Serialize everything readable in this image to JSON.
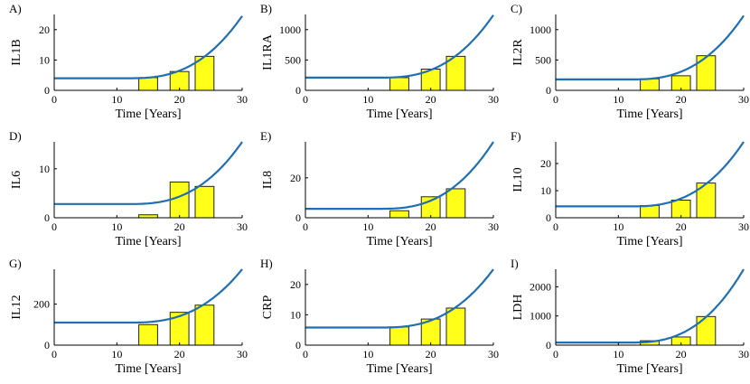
{
  "colors": {
    "curve": "#1f6fb2",
    "bar_fill": "#ffff1a",
    "bar_stroke": "#222222",
    "axis": "#000000"
  },
  "chart_data": [
    {
      "panel": "A)",
      "type": "bar+line",
      "ylabel": "IL1B",
      "xlabel": "Time [Years]",
      "xlim": [
        0,
        30
      ],
      "ylim": [
        0,
        25
      ],
      "xticks": [
        "0",
        "10",
        "20",
        "30"
      ],
      "yticks": [
        0,
        10,
        20
      ],
      "bars": [
        {
          "x": 15,
          "y": 4.2
        },
        {
          "x": 20,
          "y": 6.2
        },
        {
          "x": 24,
          "y": 11.2
        }
      ],
      "curve": {
        "baseline": 4.0,
        "end": 24.5
      }
    },
    {
      "panel": "B)",
      "type": "bar+line",
      "ylabel": "IL1RA",
      "xlabel": "Time [Years]",
      "xlim": [
        0,
        30
      ],
      "ylim": [
        0,
        1250
      ],
      "xticks": [
        "0",
        "10",
        "20",
        "30"
      ],
      "yticks": [
        0,
        500,
        1000
      ],
      "bars": [
        {
          "x": 15,
          "y": 210
        },
        {
          "x": 20,
          "y": 350
        },
        {
          "x": 24,
          "y": 560
        }
      ],
      "curve": {
        "baseline": 210,
        "end": 1240
      }
    },
    {
      "panel": "C)",
      "type": "bar+line",
      "ylabel": "IL2R",
      "xlabel": "Time [Years]",
      "xlim": [
        0,
        30
      ],
      "ylim": [
        0,
        1250
      ],
      "xticks": [
        "0",
        "10",
        "20",
        "30"
      ],
      "yticks": [
        0,
        500,
        1000
      ],
      "bars": [
        {
          "x": 15,
          "y": 190
        },
        {
          "x": 20,
          "y": 240
        },
        {
          "x": 24,
          "y": 570
        }
      ],
      "curve": {
        "baseline": 180,
        "end": 1230
      }
    },
    {
      "panel": "D)",
      "type": "bar+line",
      "ylabel": "IL6",
      "xlabel": "Time [Years]",
      "xlim": [
        0,
        30
      ],
      "ylim": [
        0,
        15.5
      ],
      "xticks": [
        "0",
        "10",
        "20",
        "30"
      ],
      "yticks": [
        0,
        10
      ],
      "bars": [
        {
          "x": 15,
          "y": 0.6
        },
        {
          "x": 20,
          "y": 7.3
        },
        {
          "x": 24,
          "y": 6.4
        }
      ],
      "curve": {
        "baseline": 2.8,
        "end": 15.5
      }
    },
    {
      "panel": "E)",
      "type": "bar+line",
      "ylabel": "IL8",
      "xlabel": "Time [Years]",
      "xlim": [
        0,
        30
      ],
      "ylim": [
        0,
        38
      ],
      "xticks": [
        "0",
        "10",
        "20",
        "30"
      ],
      "yticks": [
        0,
        20
      ],
      "bars": [
        {
          "x": 15,
          "y": 3.5
        },
        {
          "x": 20,
          "y": 10.5
        },
        {
          "x": 24,
          "y": 14.5
        }
      ],
      "curve": {
        "baseline": 4.5,
        "end": 38
      }
    },
    {
      "panel": "F)",
      "type": "bar+line",
      "ylabel": "IL10",
      "xlabel": "Time [Years]",
      "xlim": [
        0,
        30
      ],
      "ylim": [
        0,
        28
      ],
      "xticks": [
        "0",
        "10",
        "20",
        "30"
      ],
      "yticks": [
        0,
        10,
        20
      ],
      "bars": [
        {
          "x": 15,
          "y": 4.5
        },
        {
          "x": 20,
          "y": 6.5
        },
        {
          "x": 24,
          "y": 12.8
        }
      ],
      "curve": {
        "baseline": 4.2,
        "end": 28
      }
    },
    {
      "panel": "G)",
      "type": "bar+line",
      "ylabel": "IL12",
      "xlabel": "Time [Years]",
      "xlim": [
        0,
        30
      ],
      "ylim": [
        0,
        370
      ],
      "xticks": [
        "0",
        "10",
        "20",
        "30"
      ],
      "yticks": [
        0,
        200
      ],
      "bars": [
        {
          "x": 15,
          "y": 100
        },
        {
          "x": 20,
          "y": 160
        },
        {
          "x": 24,
          "y": 195
        }
      ],
      "curve": {
        "baseline": 110,
        "end": 370
      }
    },
    {
      "panel": "H)",
      "type": "bar+line",
      "ylabel": "CRP",
      "xlabel": "Time [Years]",
      "xlim": [
        0,
        30
      ],
      "ylim": [
        0,
        25
      ],
      "xticks": [
        "0",
        "10",
        "20",
        "30"
      ],
      "yticks": [
        0,
        10,
        20
      ],
      "bars": [
        {
          "x": 15,
          "y": 6.0
        },
        {
          "x": 20,
          "y": 8.6
        },
        {
          "x": 24,
          "y": 12.2
        }
      ],
      "curve": {
        "baseline": 5.8,
        "end": 25
      }
    },
    {
      "panel": "I)",
      "type": "bar+line",
      "ylabel": "LDH",
      "xlabel": "Time [Years]",
      "xlim": [
        0,
        30
      ],
      "ylim": [
        0,
        2600
      ],
      "xticks": [
        "0",
        "10",
        "20",
        "30"
      ],
      "yticks": [
        0,
        1000,
        2000
      ],
      "bars": [
        {
          "x": 15,
          "y": 150
        },
        {
          "x": 20,
          "y": 280
        },
        {
          "x": 24,
          "y": 980
        }
      ],
      "curve": {
        "baseline": 90,
        "end": 2600
      }
    }
  ]
}
